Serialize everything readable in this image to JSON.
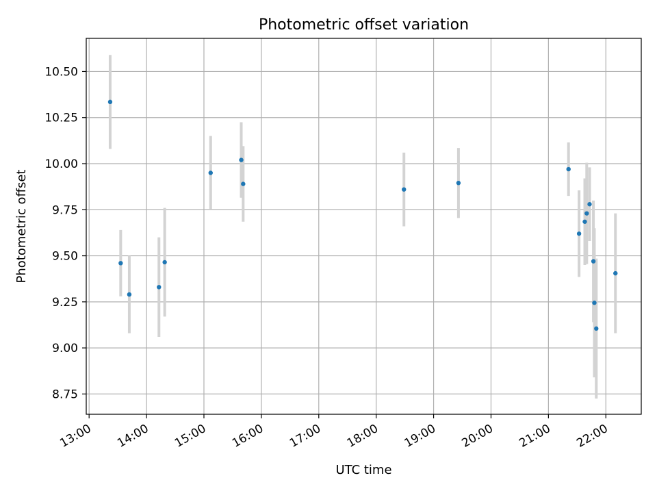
{
  "chart_data": {
    "type": "scatter",
    "title": "Photometric offset variation",
    "xlabel": "UTC time",
    "ylabel": "Photometric offset",
    "xlim": [
      "12:57",
      "22:37"
    ],
    "ylim": [
      8.64,
      10.68
    ],
    "x_ticks": [
      "13:00",
      "14:00",
      "15:00",
      "16:00",
      "17:00",
      "18:00",
      "19:00",
      "20:00",
      "21:00",
      "22:00"
    ],
    "y_ticks": [
      8.75,
      9.0,
      9.25,
      9.5,
      9.75,
      10.0,
      10.25,
      10.5
    ],
    "y_tick_labels": [
      "8.75",
      "9.00",
      "9.25",
      "9.50",
      "9.75",
      "10.00",
      "10.25",
      "10.50"
    ],
    "grid": true,
    "colors": {
      "point": "#1f77b4",
      "errorbar": "#d3d3d3",
      "grid": "#b0b0b0"
    },
    "points": [
      {
        "x": "13:22",
        "y": 10.335,
        "err": 0.255
      },
      {
        "x": "13:33",
        "y": 9.46,
        "err": 0.18
      },
      {
        "x": "13:42",
        "y": 9.29,
        "err": 0.21
      },
      {
        "x": "14:13",
        "y": 9.33,
        "err": 0.27
      },
      {
        "x": "14:19",
        "y": 9.465,
        "err": 0.295
      },
      {
        "x": "15:07",
        "y": 9.95,
        "err": 0.2
      },
      {
        "x": "15:39",
        "y": 10.02,
        "err": 0.205
      },
      {
        "x": "15:41",
        "y": 9.89,
        "err": 0.205
      },
      {
        "x": "18:29",
        "y": 9.86,
        "err": 0.2
      },
      {
        "x": "19:26",
        "y": 9.895,
        "err": 0.19
      },
      {
        "x": "21:21",
        "y": 9.97,
        "err": 0.145
      },
      {
        "x": "21:32",
        "y": 9.62,
        "err": 0.235
      },
      {
        "x": "21:38",
        "y": 9.685,
        "err": 0.235
      },
      {
        "x": "21:40",
        "y": 9.73,
        "err": 0.275
      },
      {
        "x": "21:43",
        "y": 9.78,
        "err": 0.2
      },
      {
        "x": "21:47",
        "y": 9.47,
        "err": 0.33
      },
      {
        "x": "21:48",
        "y": 9.245,
        "err": 0.405
      },
      {
        "x": "21:50",
        "y": 9.105,
        "err": 0.38
      },
      {
        "x": "22:10",
        "y": 9.405,
        "err": 0.325
      }
    ]
  }
}
